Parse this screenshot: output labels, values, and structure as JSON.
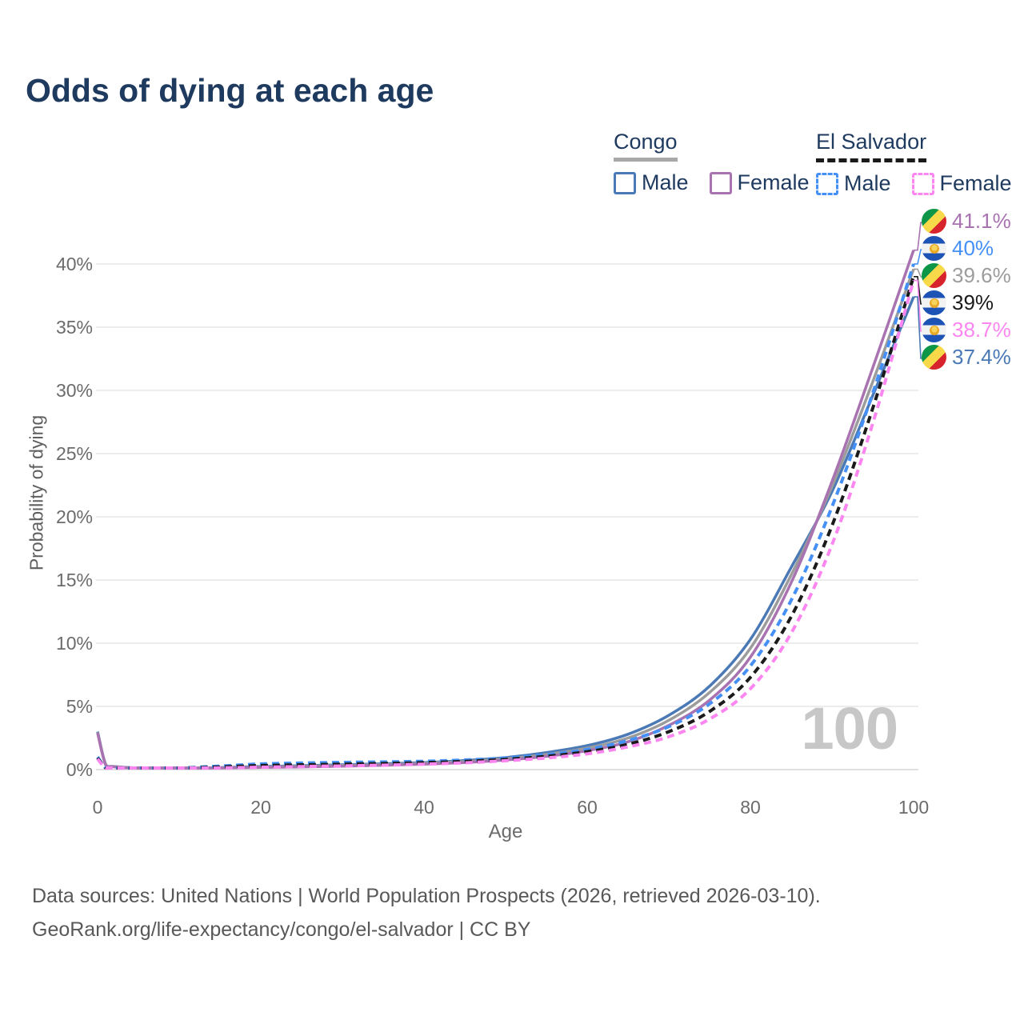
{
  "title": "Odds of dying at each age",
  "legend": {
    "groups": [
      {
        "name": "Congo",
        "line_style": "solid",
        "underline_color": "#a8a8a8",
        "items": [
          {
            "label": "Male",
            "color": "#4a79b5"
          },
          {
            "label": "Female",
            "color": "#a873b0"
          }
        ]
      },
      {
        "name": "El Salvador",
        "line_style": "dashed",
        "underline_color": "#1a1a1a",
        "items": [
          {
            "label": "Male",
            "color": "#4590f7"
          },
          {
            "label": "Female",
            "color": "#fb86f0"
          }
        ]
      }
    ]
  },
  "chart_data": {
    "type": "line",
    "title": "Odds of dying at each age",
    "xlabel": "Age",
    "ylabel": "Probability of dying",
    "xlim": [
      0,
      100
    ],
    "ylim": [
      0,
      43.8
    ],
    "xticks": [
      0,
      20,
      40,
      60,
      80,
      100
    ],
    "yticks": [
      {
        "value": 0,
        "label": "0%"
      },
      {
        "value": 5,
        "label": "5%"
      },
      {
        "value": 10,
        "label": "10%"
      },
      {
        "value": 15,
        "label": "15%"
      },
      {
        "value": 20,
        "label": "20%"
      },
      {
        "value": 25,
        "label": "25%"
      },
      {
        "value": 30,
        "label": "30%"
      },
      {
        "value": 35,
        "label": "35%"
      },
      {
        "value": 40,
        "label": "40%"
      }
    ],
    "grid": true,
    "legend_position": "top-right",
    "watermark": "100",
    "x": [
      0,
      1,
      2,
      5,
      10,
      15,
      20,
      25,
      30,
      35,
      40,
      45,
      50,
      55,
      60,
      65,
      70,
      75,
      80,
      85,
      90,
      95,
      100
    ],
    "series": [
      {
        "id": "congo-male",
        "name": "Congo Male",
        "country": "Congo",
        "sex": "Male",
        "color": "#4a79b5",
        "dash": false,
        "end_label": "37.4%",
        "values": [
          3.0,
          0.4,
          0.25,
          0.13,
          0.1,
          0.16,
          0.25,
          0.31,
          0.38,
          0.46,
          0.56,
          0.72,
          0.95,
          1.35,
          1.9,
          2.8,
          4.3,
          6.6,
          10.3,
          16.0,
          22.0,
          29.6,
          37.4
        ]
      },
      {
        "id": "congo-both",
        "name": "Congo Both sexes",
        "country": "Congo",
        "sex": "Both",
        "color": "#9c9c9c",
        "dash": false,
        "end_label": "39.6%",
        "values": [
          2.95,
          0.38,
          0.24,
          0.12,
          0.09,
          0.14,
          0.21,
          0.26,
          0.33,
          0.4,
          0.5,
          0.64,
          0.86,
          1.2,
          1.7,
          2.5,
          3.9,
          6.1,
          9.6,
          15.4,
          22.4,
          30.7,
          39.6
        ]
      },
      {
        "id": "congo-female",
        "name": "Congo Female",
        "country": "Congo",
        "sex": "Female",
        "color": "#a873b0",
        "dash": false,
        "end_label": "41.1%",
        "values": [
          2.9,
          0.35,
          0.22,
          0.11,
          0.08,
          0.12,
          0.17,
          0.21,
          0.27,
          0.34,
          0.43,
          0.56,
          0.76,
          1.05,
          1.5,
          2.2,
          3.5,
          5.5,
          8.9,
          14.8,
          22.8,
          31.8,
          41.1
        ]
      },
      {
        "id": "elsalvador-male",
        "name": "El Salvador Male",
        "country": "El Salvador",
        "sex": "Male",
        "color": "#4590f7",
        "dash": true,
        "end_label": "40%",
        "values": [
          1.0,
          0.13,
          0.09,
          0.08,
          0.12,
          0.28,
          0.45,
          0.52,
          0.57,
          0.61,
          0.66,
          0.76,
          0.92,
          1.18,
          1.6,
          2.3,
          3.4,
          5.2,
          8.2,
          13.4,
          20.8,
          29.8,
          40.0
        ]
      },
      {
        "id": "elsalvador-both",
        "name": "El Salvador Both sexes",
        "country": "El Salvador",
        "sex": "Both",
        "color": "#1a1a1a",
        "dash": true,
        "end_label": "39%",
        "values": [
          0.92,
          0.12,
          0.08,
          0.07,
          0.1,
          0.21,
          0.32,
          0.38,
          0.43,
          0.48,
          0.55,
          0.65,
          0.81,
          1.05,
          1.42,
          2.0,
          3.0,
          4.6,
          7.3,
          12.1,
          19.3,
          28.6,
          39.0
        ]
      },
      {
        "id": "elsalvador-female",
        "name": "El Salvador Female",
        "country": "El Salvador",
        "sex": "Female",
        "color": "#fb86f0",
        "dash": true,
        "end_label": "38.7%",
        "values": [
          0.85,
          0.1,
          0.07,
          0.05,
          0.08,
          0.13,
          0.19,
          0.24,
          0.29,
          0.35,
          0.43,
          0.54,
          0.7,
          0.92,
          1.25,
          1.8,
          2.6,
          4.0,
          6.4,
          10.8,
          17.8,
          27.4,
          38.7
        ]
      }
    ],
    "end_labels_order": [
      "congo-female",
      "elsalvador-male",
      "congo-both",
      "elsalvador-both",
      "elsalvador-female",
      "congo-male"
    ]
  },
  "flags": {
    "congo": {
      "icon": "congo-flag-icon",
      "green": "#0d9648",
      "yellow": "#f8d94a",
      "red": "#d7242c"
    },
    "el_salvador": {
      "icon": "el-salvador-flag-icon",
      "blue": "#1d53b5",
      "white": "#f2f2f2",
      "emblem_outer": "#e9a825",
      "emblem_inner": "#f6d35c"
    }
  },
  "footer": {
    "line1": "Data sources: United Nations | World Population Prospects (2026, retrieved 2026-03-10).",
    "line2": "GeoRank.org/life-expectancy/congo/el-salvador | CC BY"
  }
}
